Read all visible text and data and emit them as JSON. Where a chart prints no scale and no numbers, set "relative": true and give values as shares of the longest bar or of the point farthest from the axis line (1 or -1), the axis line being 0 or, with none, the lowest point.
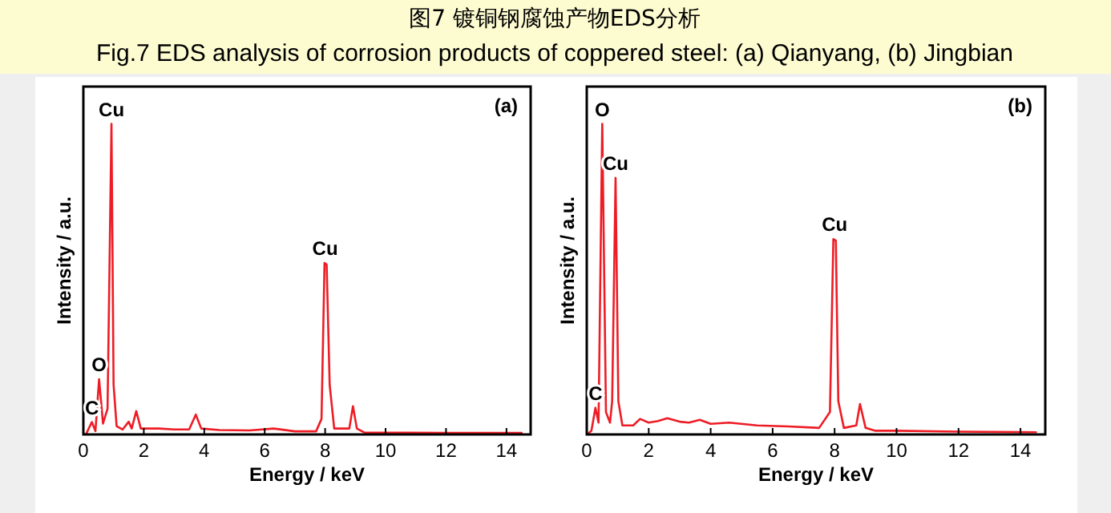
{
  "chart_data": [
    {
      "type": "line",
      "title": "图7 镀铜钢腐蚀产物EDS分析",
      "subtitle": "Fig.7 EDS analysis of corrosion products of coppered steel: (a) Qianyang, (b) Jingbian",
      "xlabel": "Energy / keV",
      "ylabel": "Intensity / a.u.",
      "relative": true,
      "xlim": [
        0,
        14.8
      ],
      "xticks": [
        0,
        2,
        4,
        6,
        8,
        10,
        12,
        14
      ],
      "grid": false,
      "series": [
        {
          "color": "#ee1c25",
          "x": [
            0.1,
            0.28,
            0.4,
            0.52,
            0.65,
            0.8,
            0.93,
            1.0,
            1.1,
            1.3,
            1.5,
            1.6,
            1.75,
            1.9,
            2.5,
            3.0,
            3.5,
            3.72,
            3.9,
            4.5,
            5.5,
            6.3,
            7.0,
            7.7,
            7.88,
            7.98,
            8.05,
            8.15,
            8.3,
            8.8,
            8.92,
            9.05,
            9.3,
            10,
            12,
            14.5
          ],
          "values": [
            0.003,
            0.04,
            0.011,
            0.178,
            0.035,
            0.083,
            1.0,
            0.16,
            0.027,
            0.016,
            0.041,
            0.019,
            0.075,
            0.019,
            0.019,
            0.016,
            0.016,
            0.064,
            0.019,
            0.014,
            0.013,
            0.019,
            0.01,
            0.01,
            0.05,
            0.552,
            0.547,
            0.16,
            0.019,
            0.019,
            0.091,
            0.019,
            0.006,
            0.006,
            0.005,
            0.005
          ]
        }
      ],
      "annotations": [
        {
          "text": "Cu",
          "x": 0.93,
          "y": 1.0
        },
        {
          "text": "O",
          "x": 0.52,
          "y": 0.178
        },
        {
          "text": "C",
          "x": 0.28,
          "y": 0.04
        },
        {
          "text": "Cu",
          "x": 8.0,
          "y": 0.552
        },
        "(a)"
      ]
    },
    {
      "type": "line",
      "xlabel": "Energy / keV",
      "ylabel": "Intensity / a.u.",
      "relative": true,
      "xlim": [
        0,
        14.8
      ],
      "xticks": [
        0,
        2,
        4,
        6,
        8,
        10,
        12,
        14
      ],
      "grid": false,
      "series": [
        {
          "color": "#ee1c25",
          "x": [
            0.05,
            0.15,
            0.28,
            0.38,
            0.5,
            0.62,
            0.75,
            0.82,
            0.93,
            1.02,
            1.15,
            1.5,
            1.72,
            2.0,
            2.3,
            2.6,
            3.0,
            3.3,
            3.65,
            4.0,
            4.6,
            5.5,
            6.5,
            7.5,
            7.85,
            7.96,
            8.04,
            8.12,
            8.3,
            8.7,
            8.82,
            9.0,
            9.3,
            10,
            12,
            14.5
          ],
          "values": [
            0.003,
            0.012,
            0.086,
            0.038,
            1.0,
            0.072,
            0.038,
            0.107,
            0.826,
            0.107,
            0.029,
            0.029,
            0.05,
            0.038,
            0.043,
            0.052,
            0.041,
            0.038,
            0.047,
            0.034,
            0.038,
            0.029,
            0.026,
            0.021,
            0.072,
            0.629,
            0.624,
            0.107,
            0.021,
            0.029,
            0.098,
            0.021,
            0.012,
            0.012,
            0.009,
            0.007
          ]
        }
      ],
      "annotations": [
        {
          "text": "O",
          "x": 0.5,
          "y": 1.0
        },
        {
          "text": "Cu",
          "x": 0.93,
          "y": 0.826
        },
        {
          "text": "C",
          "x": 0.28,
          "y": 0.086
        },
        {
          "text": "Cu",
          "x": 8.0,
          "y": 0.629
        },
        "(b)"
      ]
    }
  ]
}
